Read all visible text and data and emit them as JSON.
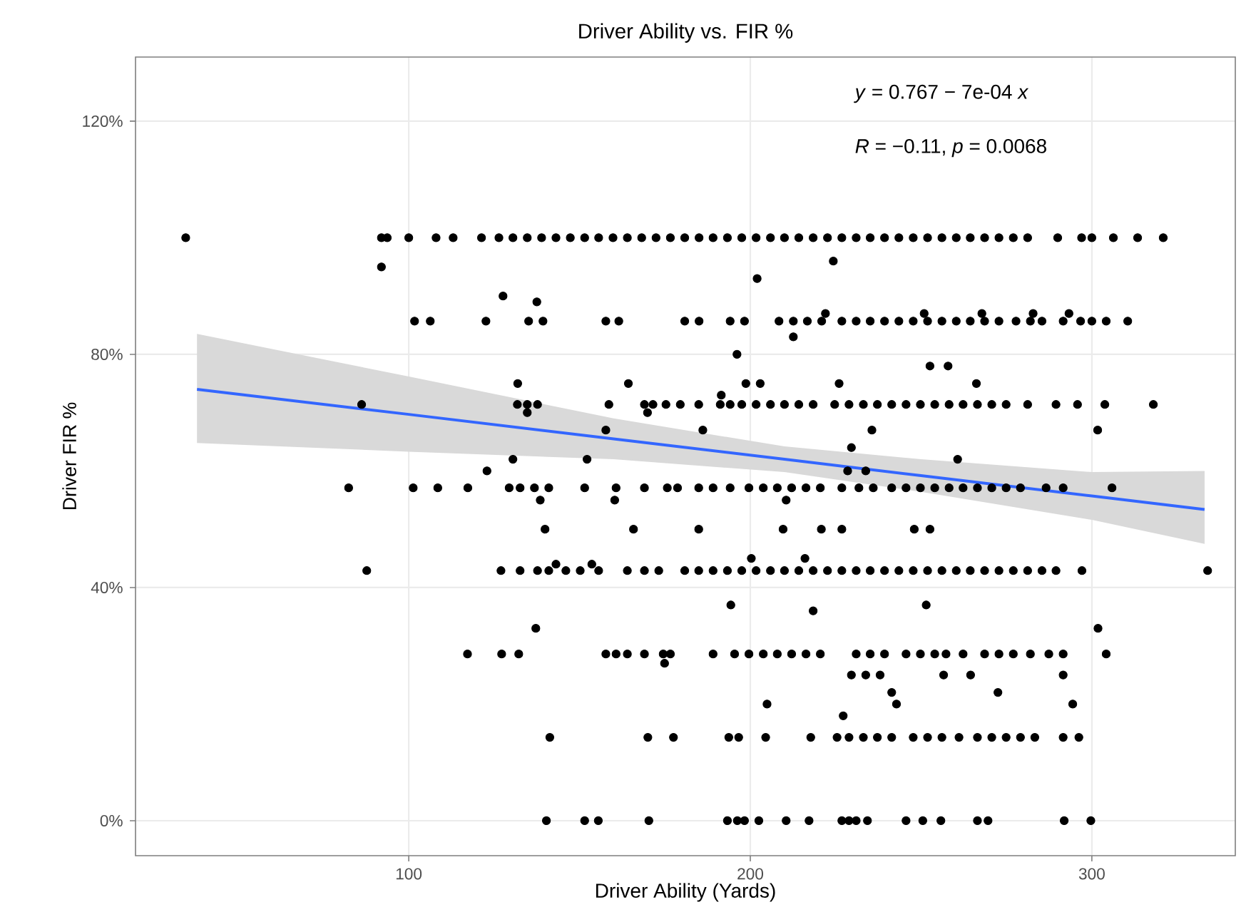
{
  "chart_data": {
    "type": "scatter",
    "title": "Driver Ability vs. FIR %",
    "xlabel": "Driver Ability (Yards)",
    "ylabel": "Driver FIR %",
    "annotations": [
      "*y* = 0.767 − 7e-04 *x*",
      "*R* = −0.11, *p* = 0.0068"
    ],
    "xlim": [
      20,
      342
    ],
    "ylim": [
      -0.06,
      1.31
    ],
    "xticks": [
      100,
      200,
      300
    ],
    "yticks": [
      {
        "value": 0,
        "label": "0%"
      },
      {
        "value": 0.4,
        "label": "40%"
      },
      {
        "value": 0.8,
        "label": "80%"
      },
      {
        "value": 1.2,
        "label": "120%"
      }
    ],
    "grid": true,
    "marker": "circle",
    "series": [
      {
        "color": "#000000",
        "x": [
          34.7,
          92,
          93.7,
          100,
          108,
          113,
          121.3,
          126.4,
          130.5,
          134.7,
          138.9,
          143.1,
          147.3,
          151.5,
          155.6,
          159.8,
          164,
          168.2,
          172.4,
          176.6,
          180.8,
          185,
          189.1,
          193.3,
          197.5,
          201.7,
          205.9,
          210,
          214.2,
          218.4,
          222.6,
          226.8,
          231,
          235.1,
          239.3,
          243.5,
          247.7,
          251.9,
          256.1,
          260.3,
          264.4,
          268.6,
          272.8,
          277,
          281.2,
          290,
          297,
          300,
          306.3,
          313.4,
          320.9
        ],
        "values": [
          1,
          1,
          1,
          1,
          1,
          1,
          1,
          1,
          1,
          1,
          1,
          1,
          1,
          1,
          1,
          1,
          1,
          1,
          1,
          1,
          1,
          1,
          1,
          1,
          1,
          1,
          1,
          1,
          1,
          1,
          1,
          1,
          1,
          1,
          1,
          1,
          1,
          1,
          1,
          1,
          1,
          1,
          1,
          1,
          1,
          1,
          1,
          1,
          1,
          1,
          1
        ]
      },
      {
        "color": "#000000",
        "x": [
          101.7,
          106.3,
          122.6,
          135.1,
          139.3,
          157.7,
          161.5,
          180.8,
          185,
          194.1,
          198.3,
          208.4,
          212.6,
          216.7,
          220.9,
          226.8,
          231,
          235.1,
          239.3,
          243.5,
          247.7,
          251.9,
          256.1,
          260.3,
          264.4,
          268.6,
          272.8,
          277.8,
          282,
          285.4,
          291.6,
          296.7,
          300,
          304.2,
          310.5
        ],
        "values": [
          0.857,
          0.857,
          0.857,
          0.857,
          0.857,
          0.857,
          0.857,
          0.857,
          0.857,
          0.857,
          0.857,
          0.857,
          0.857,
          0.857,
          0.857,
          0.857,
          0.857,
          0.857,
          0.857,
          0.857,
          0.857,
          0.857,
          0.857,
          0.857,
          0.857,
          0.857,
          0.857,
          0.857,
          0.857,
          0.857,
          0.857,
          0.857,
          0.857,
          0.857,
          0.857
        ]
      },
      {
        "color": "#000000",
        "x": [
          86.2,
          131.8,
          134.7,
          137.7,
          158.6,
          169,
          171.5,
          175.3,
          179.5,
          184.9,
          191.2,
          194.1,
          197.5,
          201.7,
          205.9,
          210,
          214.2,
          218.4,
          224.7,
          228.9,
          233.1,
          237.2,
          241.4,
          245.6,
          249.8,
          254,
          258.2,
          262.3,
          266.5,
          270.7,
          274.9,
          281.2,
          289.5,
          295.8,
          303.8,
          318
        ],
        "values": [
          0.714,
          0.714,
          0.714,
          0.714,
          0.714,
          0.714,
          0.714,
          0.714,
          0.714,
          0.714,
          0.714,
          0.714,
          0.714,
          0.714,
          0.714,
          0.714,
          0.714,
          0.714,
          0.714,
          0.714,
          0.714,
          0.714,
          0.714,
          0.714,
          0.714,
          0.714,
          0.714,
          0.714,
          0.714,
          0.714,
          0.714,
          0.714,
          0.714,
          0.714,
          0.714,
          0.714
        ]
      },
      {
        "color": "#000000",
        "x": [
          82.4,
          101.3,
          108.5,
          117.3,
          129.4,
          132.6,
          136.8,
          141,
          151.5,
          160.7,
          169,
          175.7,
          178.7,
          184.9,
          189.1,
          194.1,
          199.6,
          203.8,
          207.9,
          212.1,
          216.3,
          220.5,
          226.8,
          231.8,
          236,
          241.4,
          245.6,
          249.8,
          254,
          258.2,
          262.3,
          266.5,
          270.7,
          274.9,
          279.1,
          286.6,
          291.6,
          305.9
        ],
        "values": [
          0.571,
          0.571,
          0.571,
          0.571,
          0.571,
          0.571,
          0.571,
          0.571,
          0.571,
          0.571,
          0.571,
          0.571,
          0.571,
          0.571,
          0.571,
          0.571,
          0.571,
          0.571,
          0.571,
          0.571,
          0.571,
          0.571,
          0.571,
          0.571,
          0.571,
          0.571,
          0.571,
          0.571,
          0.571,
          0.571,
          0.571,
          0.571,
          0.571,
          0.571,
          0.571,
          0.571,
          0.571,
          0.571
        ]
      },
      {
        "color": "#000000",
        "x": [
          87.7,
          127,
          132.6,
          137.7,
          141,
          146,
          150.2,
          155.6,
          164,
          169,
          173.2,
          180.8,
          184.9,
          189.1,
          193.3,
          197.5,
          201.7,
          205.9,
          210,
          214.2,
          218.4,
          222.6,
          226.8,
          231,
          235.1,
          239.3,
          243.5,
          247.7,
          251.9,
          256.1,
          260.3,
          264.4,
          268.6,
          272.8,
          277,
          281.2,
          285.4,
          289.5,
          297.1,
          333.9
        ],
        "values": [
          0.429,
          0.429,
          0.429,
          0.429,
          0.429,
          0.429,
          0.429,
          0.429,
          0.429,
          0.429,
          0.429,
          0.429,
          0.429,
          0.429,
          0.429,
          0.429,
          0.429,
          0.429,
          0.429,
          0.429,
          0.429,
          0.429,
          0.429,
          0.429,
          0.429,
          0.429,
          0.429,
          0.429,
          0.429,
          0.429,
          0.429,
          0.429,
          0.429,
          0.429,
          0.429,
          0.429,
          0.429,
          0.429,
          0.429,
          0.429
        ]
      },
      {
        "color": "#000000",
        "x": [
          117.2,
          127.2,
          132.2,
          157.7,
          160.7,
          164,
          169,
          174.5,
          176.6,
          189.1,
          195.4,
          199.6,
          203.8,
          207.9,
          212.1,
          216.3,
          220.5,
          231,
          235.1,
          239.3,
          245.6,
          249.8,
          254,
          257.3,
          262.3,
          268.6,
          272.8,
          277,
          282,
          287.4,
          291.6,
          304.2
        ],
        "values": [
          0.286,
          0.286,
          0.286,
          0.286,
          0.286,
          0.286,
          0.286,
          0.286,
          0.286,
          0.286,
          0.286,
          0.286,
          0.286,
          0.286,
          0.286,
          0.286,
          0.286,
          0.286,
          0.286,
          0.286,
          0.286,
          0.286,
          0.286,
          0.286,
          0.286,
          0.286,
          0.286,
          0.286,
          0.286,
          0.286,
          0.286,
          0.286
        ]
      },
      {
        "color": "#000000",
        "x": [
          141.3,
          170,
          177.5,
          193.7,
          196.6,
          204.5,
          217.7,
          225.4,
          228.9,
          233.1,
          237.2,
          241.4,
          247.7,
          251.9,
          256.1,
          261.1,
          266.5,
          270.7,
          274.9,
          279.1,
          283.3,
          291.6,
          296.2
        ],
        "values": [
          0.143,
          0.143,
          0.143,
          0.143,
          0.143,
          0.143,
          0.143,
          0.143,
          0.143,
          0.143,
          0.143,
          0.143,
          0.143,
          0.143,
          0.143,
          0.143,
          0.143,
          0.143,
          0.143,
          0.143,
          0.143,
          0.143,
          0.143
        ]
      },
      {
        "color": "#000000",
        "x": [
          140.3,
          151.5,
          155.5,
          170.3,
          193.3,
          196.2,
          198.3,
          202.5,
          210.5,
          217.2,
          226.8,
          228.9,
          231,
          234.3,
          245.6,
          250.5,
          255.8,
          266.5,
          269.6,
          291.9,
          299.7
        ],
        "values": [
          0,
          0,
          0,
          0,
          0,
          0,
          0,
          0,
          0,
          0,
          0,
          0,
          0,
          0,
          0,
          0,
          0,
          0,
          0,
          0,
          0
        ]
      },
      {
        "color": "#000000",
        "x": [
          92,
          202,
          224.3,
          127.6,
          137.5,
          222,
          250.9,
          267.8,
          282.8,
          293.3,
          212.6,
          131.9,
          164.3,
          198.7,
          202.9,
          226,
          252.6,
          257.9,
          266.2,
          191.5,
          134.7,
          169.9,
          157.7,
          186.1,
          196.1,
          235.6,
          301.7,
          260.7,
          229.6,
          130.5,
          152.2,
          122.9,
          228.5,
          233.8,
          138.5,
          160.3,
          210.5,
          139.9,
          165.8,
          184.9,
          209.6,
          220.8,
          226.8,
          248,
          252.6,
          143.1,
          153.6,
          200.3,
          216,
          194.3,
          218.4,
          251.5,
          137.2,
          301.8,
          174.9,
          229.6,
          233.8,
          238,
          256.6,
          264.5,
          291.6,
          241.4,
          272.5,
          242.8,
          294.4,
          204.9,
          227.2
        ],
        "values": [
          0.95,
          0.93,
          0.96,
          0.9,
          0.89,
          0.87,
          0.87,
          0.87,
          0.87,
          0.87,
          0.83,
          0.75,
          0.75,
          0.75,
          0.75,
          0.75,
          0.78,
          0.78,
          0.75,
          0.73,
          0.7,
          0.7,
          0.67,
          0.67,
          0.8,
          0.67,
          0.67,
          0.62,
          0.64,
          0.62,
          0.62,
          0.6,
          0.6,
          0.6,
          0.55,
          0.55,
          0.55,
          0.5,
          0.5,
          0.5,
          0.5,
          0.5,
          0.5,
          0.5,
          0.5,
          0.44,
          0.44,
          0.45,
          0.45,
          0.37,
          0.36,
          0.37,
          0.33,
          0.33,
          0.27,
          0.25,
          0.25,
          0.25,
          0.25,
          0.25,
          0.25,
          0.22,
          0.22,
          0.2,
          0.2,
          0.2,
          0.18
        ]
      },
      {
        "type": "line",
        "color": "#3366ff",
        "marker": "none",
        "line_style": "solid",
        "x": [
          38,
          100,
          160,
          210,
          250,
          300,
          333
        ],
        "values": [
          0.74,
          0.697,
          0.655,
          0.62,
          0.592,
          0.557,
          0.534
        ],
        "lower": [
          0.648,
          0.633,
          0.62,
          0.598,
          0.564,
          0.516,
          0.475
        ],
        "upper": [
          0.835,
          0.762,
          0.69,
          0.642,
          0.62,
          0.598,
          0.6
        ]
      }
    ]
  }
}
